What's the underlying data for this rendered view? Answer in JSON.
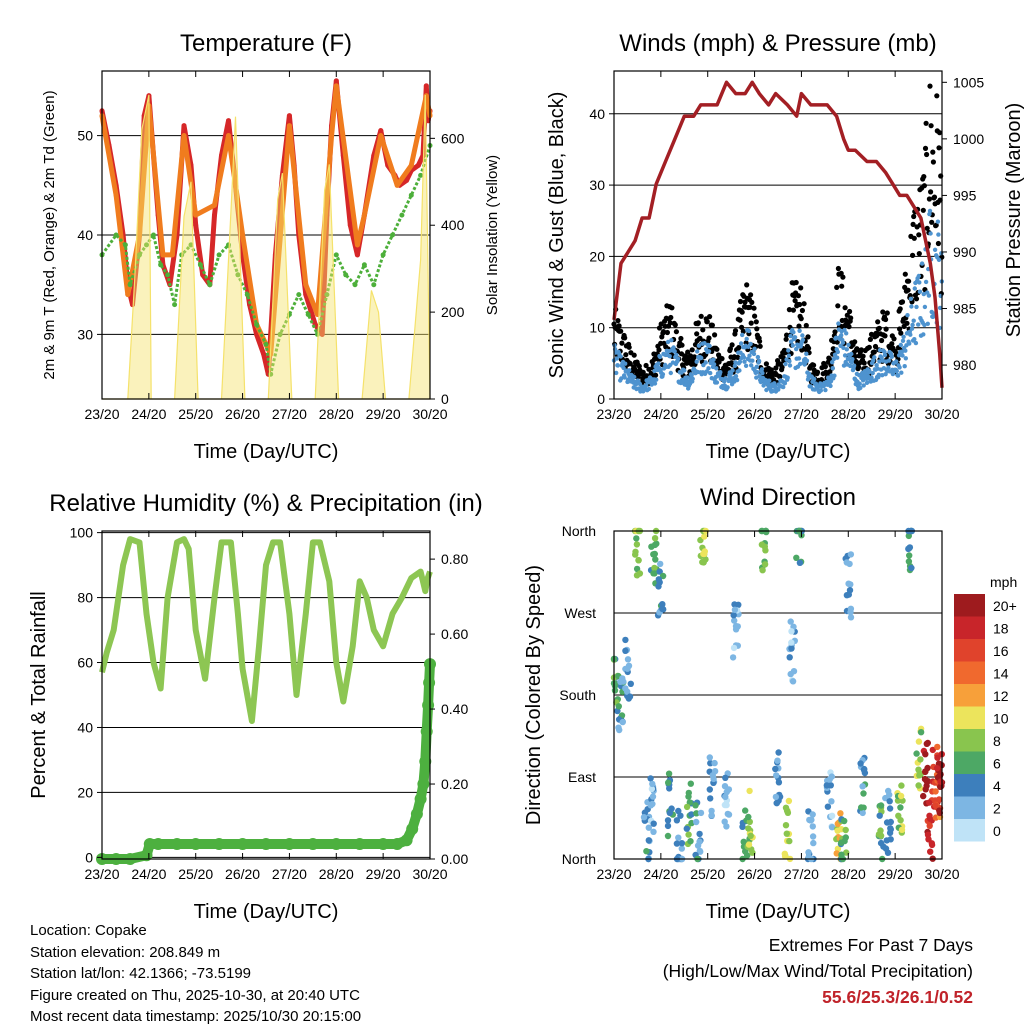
{
  "colors": {
    "temp2m": "#d62728",
    "temp9m": "#f07c1e",
    "dewpoint": "#4daf3a",
    "solar": "#f5e26b",
    "gust": "#000000",
    "wind": "#4e93cf",
    "pressure": "#a31f24",
    "rh": "#8dc653",
    "precip": "#4db03f",
    "extremes": "#c0232a"
  },
  "info": {
    "location": "Location: Copake",
    "elevation": "Station elevation: 208.849 m",
    "latlon": "Station lat/lon: 42.1366; -73.5199",
    "created": "Figure created on Thu, 2025-10-30, at 20:40 UTC",
    "recent": "Most recent data timestamp: 2025/10/30 20:15:00"
  },
  "extremes": {
    "title": "Extremes For Past 7 Days",
    "subtitle": "(High/Low/Max Wind/Total Precipitation)",
    "values": "55.6/25.3/26.1/0.52"
  },
  "chart_data": [
    {
      "id": "temperature",
      "type": "line",
      "title": "Temperature (F)",
      "xlabel": "Time (Day/UTC)",
      "ylabel": "2m & 9m T (Red, Orange) & 2m Td (Green)",
      "ylabel_right": "Solar Insolation (Yellow)",
      "xlim": [
        0,
        7
      ],
      "ylim": [
        23.5,
        56.5
      ],
      "ylim_right": [
        0,
        755
      ],
      "x_ticks": [
        "23/20",
        "24/20",
        "25/20",
        "26/20",
        "27/20",
        "28/20",
        "29/20",
        "30/20"
      ],
      "y_ticks": [
        30,
        40,
        50
      ],
      "y_ticks_right": [
        0,
        200,
        400,
        600
      ],
      "series": [
        {
          "name": "2m T",
          "axis": "left",
          "x": [
            0,
            0.15,
            0.3,
            0.45,
            0.55,
            0.65,
            0.8,
            0.9,
            1.0,
            1.1,
            1.2,
            1.3,
            1.45,
            1.6,
            1.75,
            1.9,
            2.0,
            2.15,
            2.3,
            2.4,
            2.55,
            2.7,
            2.85,
            3.0,
            3.15,
            3.3,
            3.45,
            3.55,
            3.7,
            3.85,
            4.0,
            4.1,
            4.2,
            4.35,
            4.55,
            4.7,
            4.8,
            4.9,
            5.0,
            5.15,
            5.3,
            5.45,
            5.6,
            5.8,
            5.95,
            6.1,
            6.25,
            6.35,
            6.5,
            6.6,
            6.75,
            6.85,
            6.92,
            6.96,
            7.0
          ],
          "values": [
            52.5,
            49,
            45,
            40,
            35,
            33,
            40,
            52,
            54,
            48,
            42,
            37,
            35,
            40,
            51,
            47,
            41,
            36,
            35,
            42,
            48,
            51.5,
            45,
            38,
            33,
            30,
            28,
            26,
            38,
            46,
            52,
            47,
            40,
            34,
            31,
            30,
            42,
            51,
            55.5,
            48,
            41,
            38,
            42,
            48,
            50.5,
            47,
            46,
            45,
            45.5,
            46.5,
            47,
            48,
            55,
            51.5,
            52.5
          ]
        },
        {
          "name": "9m T",
          "axis": "left",
          "x": [
            0,
            0.3,
            0.55,
            0.8,
            1.0,
            1.3,
            1.5,
            1.75,
            2.0,
            2.4,
            2.7,
            3.0,
            3.3,
            3.6,
            4.0,
            4.35,
            4.6,
            4.9,
            5.0,
            5.45,
            5.6,
            5.95,
            6.3,
            6.6,
            6.92,
            7.0
          ],
          "values": [
            52,
            44,
            34,
            40,
            53,
            38,
            38,
            50,
            42,
            43,
            50,
            40,
            31,
            28,
            51,
            35,
            32,
            50,
            55,
            39,
            42,
            50,
            45,
            47,
            54,
            52
          ]
        },
        {
          "name": "2m Td",
          "axis": "left",
          "x": [
            0,
            0.3,
            0.5,
            0.6,
            0.8,
            0.95,
            1.1,
            1.25,
            1.4,
            1.55,
            1.7,
            1.9,
            2.1,
            2.3,
            2.5,
            2.7,
            2.9,
            3.1,
            3.3,
            3.5,
            3.6,
            3.8,
            4.0,
            4.2,
            4.4,
            4.6,
            4.8,
            5.0,
            5.2,
            5.4,
            5.6,
            5.8,
            6.0,
            6.2,
            6.4,
            6.6,
            6.8,
            7.0
          ],
          "values": [
            38,
            40,
            39,
            35,
            38,
            39,
            40,
            37,
            36,
            33,
            38,
            39,
            37,
            35,
            38,
            39,
            36,
            34,
            31,
            29,
            26,
            30,
            32,
            34,
            32,
            30,
            34,
            38,
            36,
            35,
            37,
            35,
            38,
            40,
            42,
            44,
            46,
            49
          ]
        },
        {
          "name": "Solar Insolation",
          "axis": "right",
          "type": "area",
          "x": [
            0,
            0.4,
            0.55,
            0.7,
            0.85,
            1.0,
            1.05,
            1.25,
            1.55,
            1.75,
            1.9,
            2.05,
            2.25,
            2.55,
            2.75,
            2.85,
            3.05,
            3.25,
            3.55,
            3.75,
            3.85,
            4.05,
            4.25,
            4.55,
            4.75,
            4.85,
            5.05,
            5.25,
            5.55,
            5.75,
            5.9,
            6.05,
            6.25,
            6.55,
            6.8,
            6.9,
            7.0
          ],
          "values": [
            0,
            0,
            0,
            280,
            620,
            700,
            0,
            0,
            0,
            420,
            500,
            0,
            0,
            0,
            430,
            650,
            0,
            0,
            0,
            460,
            520,
            0,
            0,
            0,
            480,
            540,
            0,
            0,
            0,
            250,
            200,
            0,
            0,
            0,
            320,
            700,
            0
          ]
        }
      ]
    },
    {
      "id": "winds",
      "type": "scatter",
      "title": "Winds (mph) & Pressure (mb)",
      "xlabel": "Time (Day/UTC)",
      "ylabel": "Sonic Wind & Gust (Blue, Black)",
      "ylabel_right": "Station Pressure (Maroon)",
      "xlim": [
        0,
        7
      ],
      "ylim": [
        0,
        46
      ],
      "ylim_right": [
        977,
        1006
      ],
      "x_ticks": [
        "23/20",
        "24/20",
        "25/20",
        "26/20",
        "27/20",
        "28/20",
        "29/20",
        "30/20"
      ],
      "y_ticks": [
        0,
        10,
        20,
        30,
        40
      ],
      "y_ticks_right": [
        980,
        985,
        990,
        995,
        1000,
        1005
      ],
      "series": [
        {
          "name": "Gust",
          "x": [
            0,
            0.2,
            0.4,
            0.6,
            0.8,
            1.0,
            1.2,
            1.4,
            1.6,
            1.8,
            2.0,
            2.2,
            2.4,
            2.6,
            2.8,
            3.0,
            3.2,
            3.4,
            3.6,
            3.8,
            4.0,
            4.2,
            4.4,
            4.6,
            4.8,
            5.0,
            5.2,
            5.4,
            5.6,
            5.8,
            6.0,
            6.2,
            6.4,
            6.6,
            6.75,
            6.85,
            6.92,
            7.0
          ],
          "values": [
            12,
            9,
            6,
            4,
            5,
            10,
            13,
            8,
            6,
            11,
            12,
            7,
            5,
            9,
            16,
            12,
            5,
            4,
            6,
            15,
            15,
            5,
            4,
            6,
            18,
            13,
            6,
            7,
            10,
            12,
            8,
            16,
            26,
            30,
            43,
            38,
            42,
            30
          ]
        },
        {
          "name": "Wind",
          "x": [
            0,
            0.2,
            0.4,
            0.6,
            0.8,
            1.0,
            1.2,
            1.4,
            1.6,
            1.8,
            2.0,
            2.2,
            2.4,
            2.6,
            2.8,
            3.0,
            3.2,
            3.4,
            3.6,
            3.8,
            4.0,
            4.2,
            4.4,
            4.6,
            4.8,
            5.0,
            5.2,
            5.4,
            5.6,
            5.8,
            6.0,
            6.2,
            6.4,
            6.6,
            6.75,
            6.85,
            6.92,
            7.0
          ],
          "values": [
            7,
            5,
            3,
            2,
            3,
            6,
            8,
            5,
            3,
            7,
            8,
            4,
            3,
            5,
            10,
            7,
            3,
            2,
            3,
            9,
            9,
            3,
            2,
            3,
            11,
            8,
            3,
            4,
            6,
            7,
            5,
            9,
            15,
            18,
            25,
            22,
            24,
            18
          ]
        },
        {
          "name": "Station Pressure",
          "axis": "right",
          "type": "line",
          "x": [
            0,
            0.15,
            0.3,
            0.45,
            0.6,
            0.75,
            0.9,
            1.1,
            1.3,
            1.5,
            1.7,
            1.85,
            2.0,
            2.2,
            2.4,
            2.6,
            2.8,
            2.95,
            3.1,
            3.3,
            3.45,
            3.7,
            3.9,
            4.0,
            4.2,
            4.35,
            4.55,
            4.75,
            4.9,
            5.0,
            5.15,
            5.4,
            5.6,
            5.8,
            5.95,
            6.1,
            6.25,
            6.4,
            6.55,
            6.65,
            6.75,
            6.85,
            6.95,
            7.0
          ],
          "values": [
            984,
            989,
            990,
            991,
            993,
            993,
            996,
            998,
            1000,
            1002,
            1002,
            1003,
            1003,
            1003,
            1005,
            1004,
            1004,
            1005,
            1004,
            1003,
            1004,
            1003,
            1002,
            1004,
            1003,
            1003,
            1003,
            1002,
            1000,
            999,
            999,
            998,
            998,
            997,
            996,
            995,
            995,
            994,
            993,
            991,
            989,
            986,
            981,
            978
          ]
        }
      ]
    },
    {
      "id": "humidity",
      "type": "line",
      "title": "Relative Humidity (%) & Precipitation (in)",
      "xlabel": "Time (Day/UTC)",
      "ylabel": "Percent & Total Rainfall",
      "xlim": [
        0,
        7
      ],
      "ylim": [
        -0.5,
        100.5
      ],
      "ylim_right": [
        0,
        0.875
      ],
      "x_ticks": [
        "23/20",
        "24/20",
        "25/20",
        "26/20",
        "27/20",
        "28/20",
        "29/20",
        "30/20"
      ],
      "y_ticks": [
        0,
        20,
        40,
        60,
        80,
        100
      ],
      "y_ticks_right": [
        "0.00",
        "0.20",
        "0.40",
        "0.60",
        "0.80"
      ],
      "series": [
        {
          "name": "Relative Humidity",
          "axis": "left",
          "x": [
            0,
            0.1,
            0.25,
            0.45,
            0.6,
            0.8,
            0.95,
            1.1,
            1.25,
            1.4,
            1.6,
            1.75,
            1.85,
            2.0,
            2.2,
            2.4,
            2.55,
            2.75,
            2.9,
            3.0,
            3.2,
            3.35,
            3.5,
            3.65,
            3.8,
            4.0,
            4.15,
            4.35,
            4.5,
            4.65,
            4.85,
            5.0,
            5.15,
            5.35,
            5.5,
            5.65,
            5.8,
            6.0,
            6.2,
            6.4,
            6.6,
            6.8,
            6.9,
            6.95,
            7.0
          ],
          "values": [
            57,
            63,
            70,
            90,
            98,
            97,
            75,
            60,
            52,
            80,
            97,
            98,
            95,
            70,
            55,
            80,
            97,
            97,
            75,
            58,
            42,
            65,
            90,
            97,
            97,
            75,
            50,
            75,
            97,
            97,
            85,
            60,
            48,
            65,
            85,
            80,
            70,
            65,
            75,
            80,
            86,
            88,
            82,
            86,
            88
          ]
        },
        {
          "name": "Total Precipitation",
          "axis": "right",
          "type": "scatter",
          "x": [
            0,
            0.3,
            0.6,
            0.95,
            1.02,
            1.2,
            1.6,
            2.0,
            2.5,
            3.0,
            3.5,
            4.0,
            4.5,
            5.0,
            5.5,
            6.0,
            6.3,
            6.5,
            6.62,
            6.72,
            6.8,
            6.86,
            6.9,
            6.93,
            6.96,
            6.98,
            7.0
          ],
          "values": [
            0.0,
            0.0,
            0.0,
            0.01,
            0.04,
            0.04,
            0.04,
            0.04,
            0.04,
            0.04,
            0.04,
            0.04,
            0.04,
            0.04,
            0.04,
            0.04,
            0.04,
            0.05,
            0.08,
            0.12,
            0.16,
            0.2,
            0.26,
            0.34,
            0.41,
            0.47,
            0.52
          ]
        }
      ]
    },
    {
      "id": "direction",
      "type": "scatter",
      "title": "Wind Direction",
      "xlabel": "Time (Day/UTC)",
      "ylabel": "Direction (Colored By Speed)",
      "xlim": [
        0,
        7
      ],
      "ylim": [
        0,
        360
      ],
      "x_ticks": [
        "23/20",
        "24/20",
        "25/20",
        "26/20",
        "27/20",
        "28/20",
        "29/20",
        "30/20"
      ],
      "y_ticks": [
        "North",
        "East",
        "South",
        "West",
        "North"
      ],
      "colorbar": {
        "title": "mph",
        "labels": [
          "20+",
          "18",
          "16",
          "14",
          "12",
          "10",
          "8",
          "6",
          "4",
          "2",
          "0"
        ],
        "colors": [
          "#9e1b1e",
          "#c8252a",
          "#e0432c",
          "#f0692e",
          "#f7a03a",
          "#ece45c",
          "#89c54e",
          "#4da865",
          "#3d7fbc",
          "#7db6e3",
          "#bfe3f7"
        ]
      },
      "series": [
        {
          "name": "Direction",
          "x": [
            0.05,
            0.15,
            0.3,
            0.5,
            0.7,
            0.8,
            0.85,
            1.0,
            1.2,
            1.4,
            1.6,
            1.8,
            1.9,
            2.1,
            2.4,
            2.6,
            2.8,
            2.9,
            3.2,
            3.5,
            3.7,
            3.8,
            3.95,
            4.2,
            4.6,
            4.8,
            4.9,
            5.0,
            5.3,
            5.7,
            5.85,
            6.1,
            6.3,
            6.5,
            6.65,
            6.75,
            6.85,
            6.9,
            6.95
          ],
          "values": [
            190,
            175,
            210,
            340,
            30,
            60,
            330,
            290,
            60,
            20,
            50,
            30,
            350,
            80,
            70,
            250,
            20,
            40,
            350,
            90,
            30,
            230,
            350,
            20,
            60,
            30,
            10,
            300,
            80,
            25,
            40,
            60,
            350,
            110,
            95,
            30,
            90,
            80,
            80
          ],
          "speeds": [
            6,
            4,
            3,
            8,
            4,
            2,
            6,
            4,
            5,
            3,
            6,
            4,
            8,
            3,
            2,
            2,
            5,
            8,
            7,
            3,
            9,
            2,
            6,
            3,
            2,
            10,
            6,
            3,
            4,
            6,
            3,
            8,
            5,
            8,
            20,
            18,
            16,
            14,
            20
          ]
        }
      ]
    }
  ]
}
